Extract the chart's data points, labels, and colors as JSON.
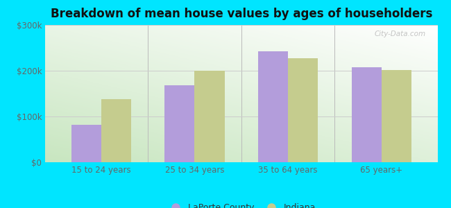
{
  "title": "Breakdown of mean house values by ages of householders",
  "categories": [
    "15 to 24 years",
    "25 to 34 years",
    "35 to 64 years",
    "65 years+"
  ],
  "laporte_values": [
    82000,
    168000,
    242000,
    208000
  ],
  "indiana_values": [
    138000,
    200000,
    228000,
    202000
  ],
  "laporte_color": "#b39ddb",
  "indiana_color": "#c5cc8e",
  "background_color": "#00e5ff",
  "ylim": [
    0,
    300000
  ],
  "yticks": [
    0,
    100000,
    200000,
    300000
  ],
  "ytick_labels": [
    "$0",
    "$100k",
    "$200k",
    "$300k"
  ],
  "legend_labels": [
    "LaPorte County",
    "Indiana"
  ],
  "watermark": "City-Data.com",
  "bar_width": 0.32,
  "title_fontsize": 12,
  "tick_fontsize": 8.5,
  "legend_fontsize": 9
}
